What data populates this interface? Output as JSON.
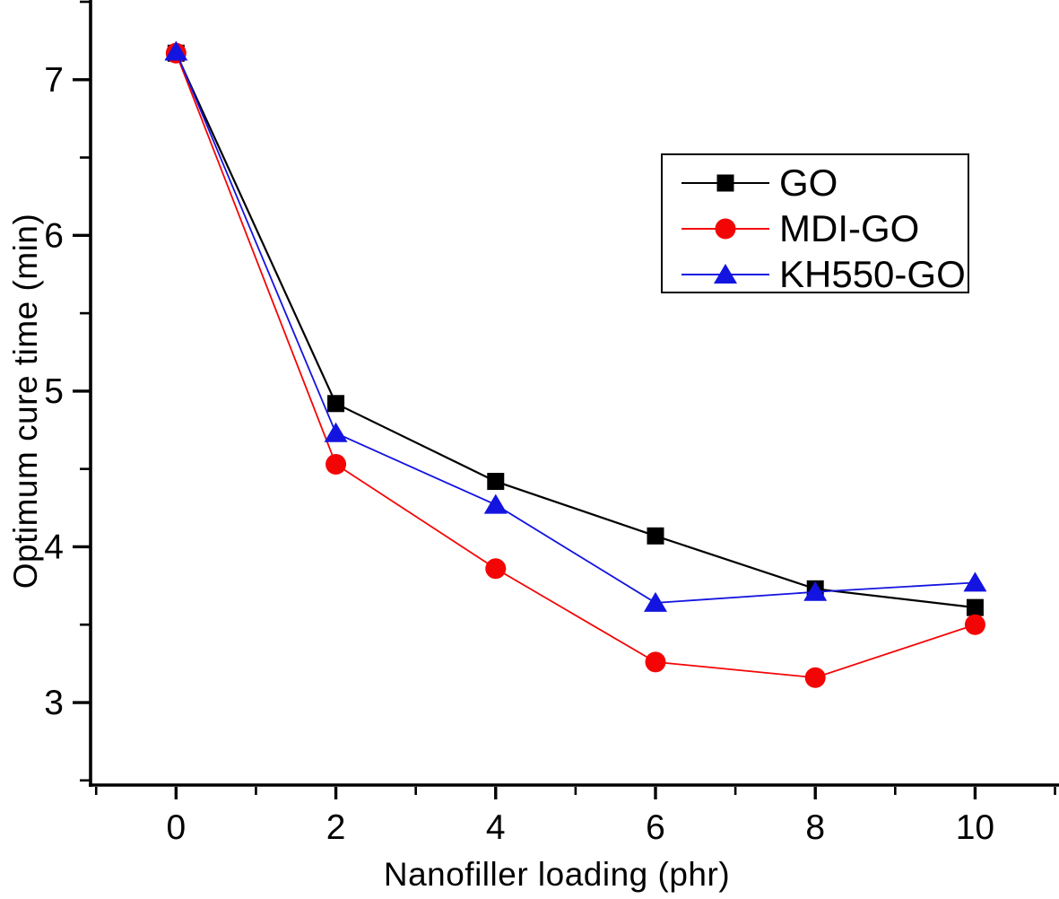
{
  "chart_data": {
    "type": "line",
    "title": "",
    "xlabel": "Nanofiller loading (phr)",
    "ylabel": "Optimum cure time (min)",
    "x": [
      0,
      2,
      4,
      6,
      8,
      10
    ],
    "xlim": [
      -1.07,
      11.05
    ],
    "ylim": [
      2.47,
      7.5
    ],
    "xticks": [
      0,
      2,
      4,
      6,
      8,
      10
    ],
    "yticks": [
      3,
      4,
      5,
      6,
      7
    ],
    "xminor": [
      -1,
      1,
      3,
      5,
      7,
      9,
      11
    ],
    "yminor": [
      2.5,
      3.5,
      4.5,
      5.5,
      6.5,
      7.5
    ],
    "grid": false,
    "legend_position": "upper-right",
    "axis_color": "#000000",
    "series": [
      {
        "name": "GO",
        "color": "#000000",
        "marker": "square",
        "values": [
          7.17,
          4.92,
          4.42,
          4.07,
          3.73,
          3.61
        ]
      },
      {
        "name": "MDI-GO",
        "color": "#f40505",
        "marker": "circle",
        "values": [
          7.17,
          4.53,
          3.86,
          3.26,
          3.16,
          3.5
        ]
      },
      {
        "name": "KH550-GO",
        "color": "#1414e0",
        "marker": "triangle",
        "values": [
          7.18,
          4.73,
          4.27,
          3.64,
          3.71,
          3.77
        ]
      }
    ]
  }
}
